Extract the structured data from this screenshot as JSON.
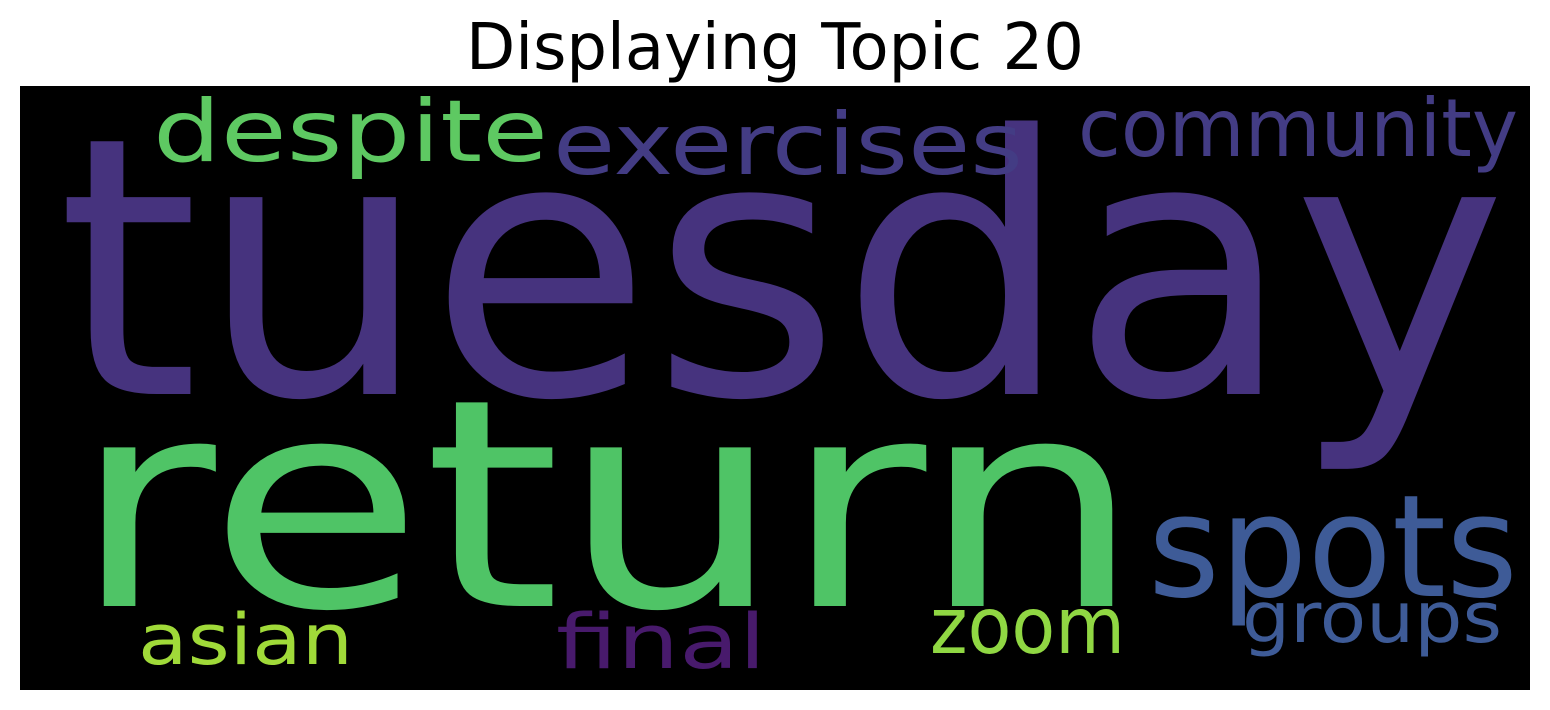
{
  "title": "Displaying Topic 20",
  "words": [
    {
      "text": "tuesday",
      "color": "#46337e"
    },
    {
      "text": "return",
      "color": "#4fc466"
    },
    {
      "text": "spots",
      "color": "#3e5b97"
    },
    {
      "text": "despite",
      "color": "#5ec962"
    },
    {
      "text": "exercises",
      "color": "#433c84"
    },
    {
      "text": "community",
      "color": "#433c84"
    },
    {
      "text": "zoom",
      "color": "#90d743"
    },
    {
      "text": "groups",
      "color": "#3e5b97"
    },
    {
      "text": "asian",
      "color": "#a0da39"
    },
    {
      "text": "final",
      "color": "#481a6c"
    }
  ]
}
